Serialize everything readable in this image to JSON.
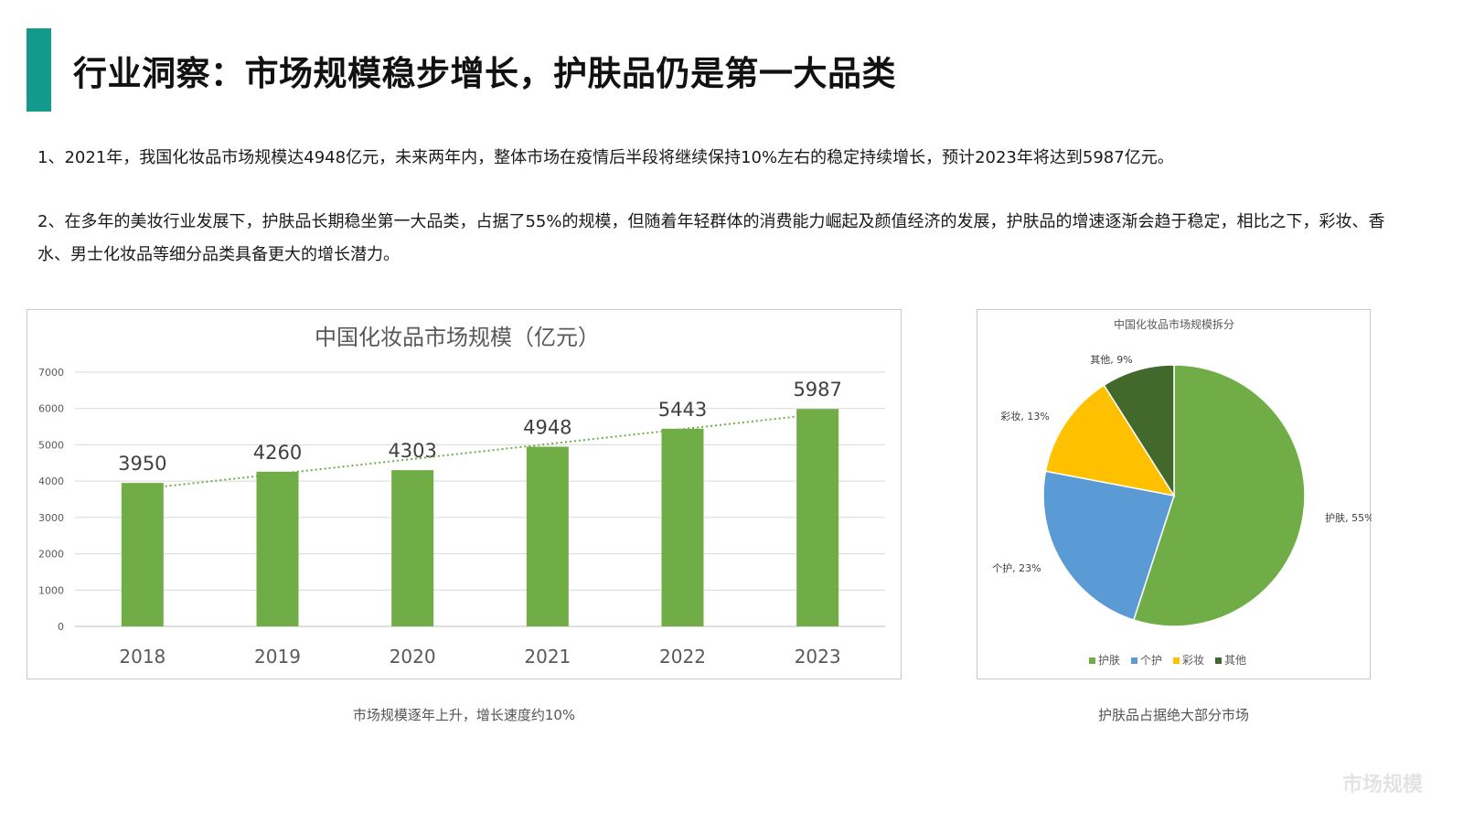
{
  "page": {
    "title": "行业洞察：市场规模稳步增长，护肤品仍是第一大品类",
    "paragraph1": "1、2021年，我国化妆品市场规模达4948亿元，未来两年内，整体市场在疫情后半段将继续保持10%左右的稳定持续增长，预计2023年将达到5987亿元。",
    "paragraph2": "2、在多年的美妆行业发展下，护肤品长期稳坐第一大品类，占据了55%的规模，但随着年轻群体的消费能力崛起及颜值经济的发展，护肤品的增速逐渐会趋于稳定，相比之下，彩妆、香水、男士化妆品等细分品类具备更大的增长潜力。",
    "caption_left": "市场规模逐年上升，增长速度约10%",
    "caption_right": "护肤品占据绝大部分市场",
    "watermark": "市场规模",
    "accent_color": "#14998d"
  },
  "chart_data": [
    {
      "type": "bar",
      "title": "中国化妆品市场规模（亿元）",
      "categories": [
        "2018",
        "2019",
        "2020",
        "2021",
        "2022",
        "2023"
      ],
      "values": [
        3950,
        4260,
        4303,
        4948,
        5443,
        5987
      ],
      "data_labels": [
        "3950",
        "4260",
        "4303",
        "4948",
        "5443",
        "5987"
      ],
      "ylim": [
        0,
        7000
      ],
      "yticks": [
        "0",
        "1000",
        "2000",
        "3000",
        "4000",
        "5000",
        "6000",
        "7000"
      ],
      "trendline": "linear, dotted",
      "grid": true,
      "bar_color": "#70ad47",
      "trend_color": "#70ad47"
    },
    {
      "type": "pie",
      "title": "中国化妆品市场规模拆分",
      "slices": [
        {
          "name": "护肤",
          "value": 55,
          "label": "护肤, 55%",
          "color": "#70ad47"
        },
        {
          "name": "个护",
          "value": 23,
          "label": "个护, 23%",
          "color": "#5b9bd5"
        },
        {
          "name": "彩妆",
          "value": 13,
          "label": "彩妆, 13%",
          "color": "#ffc000"
        },
        {
          "name": "其他",
          "value": 9,
          "label": "其他, 9%",
          "color": "#43682b"
        }
      ],
      "legend": "bottom"
    }
  ]
}
